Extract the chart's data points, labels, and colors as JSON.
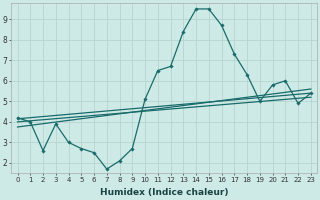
{
  "xlabel": "Humidex (Indice chaleur)",
  "bg_color": "#ceeae6",
  "grid_color": "#b8d4d0",
  "line_color": "#1a6b6b",
  "xlim": [
    -0.5,
    23.5
  ],
  "ylim": [
    1.5,
    9.8
  ],
  "xticks": [
    0,
    1,
    2,
    3,
    4,
    5,
    6,
    7,
    8,
    9,
    10,
    11,
    12,
    13,
    14,
    15,
    16,
    17,
    18,
    19,
    20,
    21,
    22,
    23
  ],
  "yticks": [
    2,
    3,
    4,
    5,
    6,
    7,
    8,
    9
  ],
  "main_x": [
    0,
    1,
    2,
    3,
    4,
    5,
    6,
    7,
    8,
    9,
    10,
    11,
    12,
    13,
    14,
    15,
    16,
    17,
    18,
    19,
    20,
    21,
    22,
    23
  ],
  "main_y": [
    4.2,
    4.0,
    2.6,
    3.9,
    3.0,
    2.7,
    2.5,
    1.7,
    2.1,
    2.7,
    5.1,
    6.5,
    6.7,
    8.4,
    9.5,
    9.5,
    8.7,
    7.3,
    6.3,
    5.0,
    5.8,
    6.0,
    4.9,
    5.4
  ],
  "line1_x": [
    0,
    23
  ],
  "line1_y": [
    4.15,
    5.4
  ],
  "line2_x": [
    0,
    23
  ],
  "line2_y": [
    4.0,
    5.2
  ],
  "line3_x": [
    0,
    23
  ],
  "line3_y": [
    3.75,
    5.6
  ],
  "xlabel_fontsize": 6.5,
  "tick_fontsize": 5.0
}
